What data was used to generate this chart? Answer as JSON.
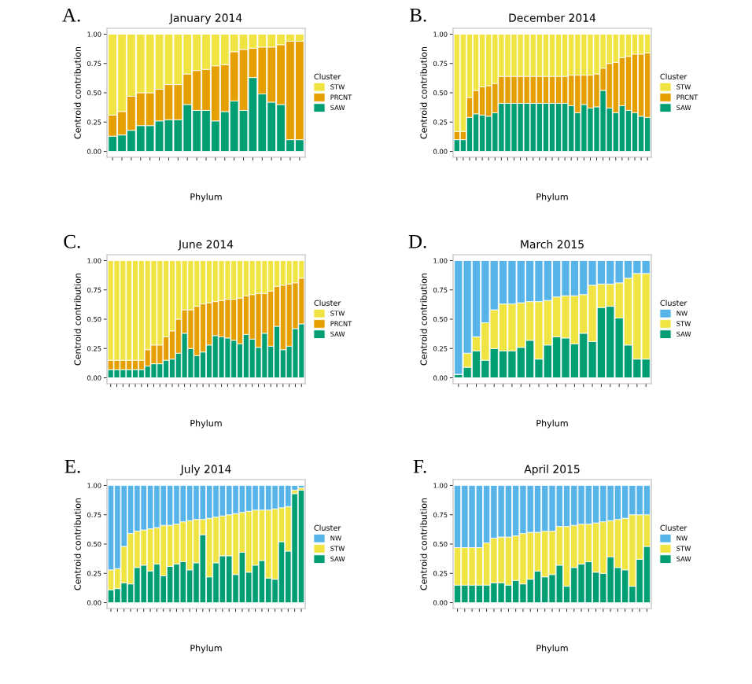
{
  "chart_data": [
    {
      "type": "bar",
      "stacked": true,
      "title": "January 2014",
      "annotations": [
        "A."
      ],
      "xlabel": "Phylum",
      "ylabel": "Centroid contribution",
      "legend_title": "Cluster",
      "legend": "right",
      "ylim": [
        -0.05,
        1.05
      ],
      "yticks": [
        {
          "value": 0,
          "label": "0.00"
        },
        {
          "value": 0.25,
          "label": "0.25"
        },
        {
          "value": 0.5,
          "label": "0.50"
        },
        {
          "value": 0.75,
          "label": "0.75"
        },
        {
          "value": 1,
          "label": "1.00"
        }
      ],
      "categories": [
        null,
        null,
        null,
        null,
        null,
        null,
        null,
        null,
        null,
        null,
        null,
        null,
        null,
        null,
        null,
        null,
        null,
        null,
        null,
        null,
        null
      ],
      "series": [
        {
          "name": "SAW",
          "color": "#009e73",
          "values": [
            0.13,
            0.14,
            0.18,
            0.22,
            0.22,
            0.26,
            0.27,
            0.27,
            0.4,
            0.35,
            0.35,
            0.26,
            0.34,
            0.43,
            0.35,
            0.63,
            0.49,
            0.42,
            0.4,
            0.1,
            0.1
          ]
        },
        {
          "name": "PRCNT",
          "color": "#e69f00",
          "values": [
            0.18,
            0.2,
            0.29,
            0.28,
            0.28,
            0.27,
            0.3,
            0.3,
            0.26,
            0.34,
            0.35,
            0.47,
            0.4,
            0.42,
            0.52,
            0.25,
            0.4,
            0.47,
            0.51,
            0.84,
            0.84
          ]
        },
        {
          "name": "STW",
          "color": "#f0e442",
          "values": [
            0.69,
            0.66,
            0.53,
            0.5,
            0.5,
            0.47,
            0.43,
            0.43,
            0.34,
            0.31,
            0.3,
            0.27,
            0.26,
            0.15,
            0.13,
            0.12,
            0.11,
            0.11,
            0.09,
            0.06,
            0.06
          ]
        }
      ]
    },
    {
      "type": "bar",
      "stacked": true,
      "title": "December 2014",
      "annotations": [
        "B."
      ],
      "xlabel": "Phylum",
      "ylabel": "Centroid contribution",
      "legend_title": "Cluster",
      "legend": "right",
      "ylim": [
        -0.05,
        1.05
      ],
      "yticks": [
        {
          "value": 0,
          "label": "0.00"
        },
        {
          "value": 0.25,
          "label": "0.25"
        },
        {
          "value": 0.5,
          "label": "0.50"
        },
        {
          "value": 0.75,
          "label": "0.75"
        },
        {
          "value": 1,
          "label": "1.00"
        }
      ],
      "categories": [
        null,
        null,
        null,
        null,
        null,
        null,
        null,
        null,
        null,
        null,
        null,
        null,
        null,
        null,
        null,
        null,
        null,
        null,
        null,
        null,
        null,
        null,
        null,
        null,
        null,
        null,
        null,
        null,
        null,
        null,
        null
      ],
      "series": [
        {
          "name": "SAW",
          "color": "#009e73",
          "values": [
            0.1,
            0.1,
            0.29,
            0.32,
            0.31,
            0.3,
            0.33,
            0.41,
            0.41,
            0.41,
            0.41,
            0.41,
            0.41,
            0.41,
            0.41,
            0.41,
            0.41,
            0.41,
            0.39,
            0.33,
            0.4,
            0.37,
            0.38,
            0.52,
            0.37,
            0.33,
            0.39,
            0.35,
            0.33,
            0.3,
            0.29
          ]
        },
        {
          "name": "PRCNT",
          "color": "#e69f00",
          "values": [
            0.07,
            0.07,
            0.17,
            0.2,
            0.24,
            0.26,
            0.25,
            0.23,
            0.23,
            0.23,
            0.23,
            0.23,
            0.23,
            0.23,
            0.23,
            0.23,
            0.23,
            0.23,
            0.26,
            0.32,
            0.25,
            0.28,
            0.28,
            0.19,
            0.38,
            0.43,
            0.41,
            0.46,
            0.5,
            0.53,
            0.55
          ]
        },
        {
          "name": "STW",
          "color": "#f0e442",
          "values": [
            0.83,
            0.83,
            0.54,
            0.48,
            0.45,
            0.44,
            0.42,
            0.36,
            0.36,
            0.36,
            0.36,
            0.36,
            0.36,
            0.36,
            0.36,
            0.36,
            0.36,
            0.36,
            0.35,
            0.35,
            0.35,
            0.35,
            0.34,
            0.29,
            0.25,
            0.24,
            0.2,
            0.19,
            0.17,
            0.17,
            0.16
          ]
        }
      ]
    },
    {
      "type": "bar",
      "stacked": true,
      "title": "June 2014",
      "annotations": [
        "C."
      ],
      "xlabel": "Phylum",
      "ylabel": "Centroid contribution",
      "legend_title": "Cluster",
      "legend": "right",
      "ylim": [
        -0.05,
        1.05
      ],
      "yticks": [
        {
          "value": 0,
          "label": "0.00"
        },
        {
          "value": 0.25,
          "label": "0.25"
        },
        {
          "value": 0.5,
          "label": "0.50"
        },
        {
          "value": 0.75,
          "label": "0.75"
        },
        {
          "value": 1,
          "label": "1.00"
        }
      ],
      "categories": [
        null,
        null,
        null,
        null,
        null,
        null,
        null,
        null,
        null,
        null,
        null,
        null,
        null,
        null,
        null,
        null,
        null,
        null,
        null,
        null,
        null,
        null,
        null,
        null,
        null,
        null,
        null,
        null,
        null,
        null,
        null,
        null
      ],
      "series": [
        {
          "name": "SAW",
          "color": "#009e73",
          "values": [
            0.07,
            0.07,
            0.07,
            0.07,
            0.07,
            0.07,
            0.1,
            0.12,
            0.12,
            0.15,
            0.16,
            0.21,
            0.38,
            0.25,
            0.19,
            0.22,
            0.28,
            0.36,
            0.35,
            0.34,
            0.32,
            0.29,
            0.37,
            0.33,
            0.26,
            0.38,
            0.27,
            0.44,
            0.24,
            0.27,
            0.42,
            0.46
          ]
        },
        {
          "name": "PRCNT",
          "color": "#e69f00",
          "values": [
            0.08,
            0.08,
            0.08,
            0.08,
            0.08,
            0.08,
            0.14,
            0.16,
            0.16,
            0.2,
            0.24,
            0.29,
            0.2,
            0.33,
            0.42,
            0.41,
            0.36,
            0.29,
            0.31,
            0.33,
            0.35,
            0.39,
            0.33,
            0.38,
            0.46,
            0.34,
            0.47,
            0.34,
            0.55,
            0.53,
            0.39,
            0.39
          ]
        },
        {
          "name": "STW",
          "color": "#f0e442",
          "values": [
            0.85,
            0.85,
            0.85,
            0.85,
            0.85,
            0.85,
            0.76,
            0.72,
            0.72,
            0.65,
            0.6,
            0.5,
            0.42,
            0.42,
            0.39,
            0.37,
            0.36,
            0.35,
            0.34,
            0.33,
            0.33,
            0.32,
            0.3,
            0.29,
            0.28,
            0.28,
            0.26,
            0.22,
            0.21,
            0.2,
            0.19,
            0.15
          ]
        }
      ]
    },
    {
      "type": "bar",
      "stacked": true,
      "title": "March 2015",
      "annotations": [
        "D."
      ],
      "xlabel": "Phylum",
      "ylabel": "Centroid contribution",
      "legend_title": "Cluster",
      "legend": "right",
      "ylim": [
        -0.05,
        1.05
      ],
      "yticks": [
        {
          "value": 0,
          "label": "0.00"
        },
        {
          "value": 0.25,
          "label": "0.25"
        },
        {
          "value": 0.5,
          "label": "0.50"
        },
        {
          "value": 0.75,
          "label": "0.75"
        },
        {
          "value": 1,
          "label": "1.00"
        }
      ],
      "categories": [
        null,
        null,
        null,
        null,
        null,
        null,
        null,
        null,
        null,
        null,
        null,
        null,
        null,
        null,
        null,
        null,
        null,
        null,
        null,
        null,
        null,
        null
      ],
      "series": [
        {
          "name": "SAW",
          "color": "#009e73",
          "values": [
            0.03,
            0.09,
            0.23,
            0.15,
            0.25,
            0.23,
            0.23,
            0.26,
            0.32,
            0.16,
            0.28,
            0.35,
            0.34,
            0.29,
            0.38,
            0.31,
            0.6,
            0.61,
            0.51,
            0.28,
            0.16,
            0.16
          ]
        },
        {
          "name": "STW",
          "color": "#f0e442",
          "values": [
            0,
            0.12,
            0.12,
            0.32,
            0.33,
            0.4,
            0.4,
            0.38,
            0.33,
            0.49,
            0.38,
            0.34,
            0.36,
            0.41,
            0.33,
            0.48,
            0.2,
            0.19,
            0.3,
            0.57,
            0.73,
            0.73
          ]
        },
        {
          "name": "NW",
          "color": "#56b4e9",
          "values": [
            0.97,
            0.79,
            0.65,
            0.53,
            0.42,
            0.37,
            0.37,
            0.36,
            0.35,
            0.35,
            0.34,
            0.31,
            0.3,
            0.3,
            0.29,
            0.21,
            0.2,
            0.2,
            0.19,
            0.15,
            0.11,
            0.11
          ]
        }
      ]
    },
    {
      "type": "bar",
      "stacked": true,
      "title": "July 2014",
      "annotations": [
        "E."
      ],
      "xlabel": "Phylum",
      "ylabel": "Centroid contribution",
      "legend_title": "Cluster",
      "legend": "right",
      "ylim": [
        -0.05,
        1.05
      ],
      "yticks": [
        {
          "value": 0,
          "label": "0.00"
        },
        {
          "value": 0.25,
          "label": "0.25"
        },
        {
          "value": 0.5,
          "label": "0.50"
        },
        {
          "value": 0.75,
          "label": "0.75"
        },
        {
          "value": 1,
          "label": "1.00"
        }
      ],
      "categories": [
        null,
        null,
        null,
        null,
        null,
        null,
        null,
        null,
        null,
        null,
        null,
        null,
        null,
        null,
        null,
        null,
        null,
        null,
        null,
        null,
        null,
        null,
        null,
        null,
        null,
        null,
        null,
        null,
        null,
        null
      ],
      "series": [
        {
          "name": "SAW",
          "color": "#009e73",
          "values": [
            0.11,
            0.12,
            0.17,
            0.16,
            0.3,
            0.32,
            0.27,
            0.33,
            0.23,
            0.31,
            0.33,
            0.35,
            0.28,
            0.34,
            0.58,
            0.22,
            0.34,
            0.4,
            0.4,
            0.24,
            0.43,
            0.26,
            0.32,
            0.36,
            0.21,
            0.2,
            0.52,
            0.44,
            0.93,
            0.96
          ]
        },
        {
          "name": "STW",
          "color": "#f0e442",
          "values": [
            0.17,
            0.17,
            0.31,
            0.43,
            0.31,
            0.3,
            0.36,
            0.31,
            0.43,
            0.35,
            0.34,
            0.34,
            0.42,
            0.37,
            0.13,
            0.5,
            0.39,
            0.34,
            0.35,
            0.52,
            0.34,
            0.52,
            0.47,
            0.43,
            0.58,
            0.6,
            0.29,
            0.38,
            0.03,
            0.02
          ]
        },
        {
          "name": "NW",
          "color": "#56b4e9",
          "values": [
            0.72,
            0.71,
            0.52,
            0.41,
            0.39,
            0.38,
            0.37,
            0.36,
            0.34,
            0.34,
            0.33,
            0.31,
            0.3,
            0.29,
            0.29,
            0.28,
            0.27,
            0.26,
            0.25,
            0.24,
            0.23,
            0.22,
            0.21,
            0.21,
            0.21,
            0.2,
            0.19,
            0.18,
            0.04,
            0.02
          ]
        }
      ]
    },
    {
      "type": "bar",
      "stacked": true,
      "title": "April 2015",
      "annotations": [
        "F."
      ],
      "xlabel": "Phylum",
      "ylabel": "Centroid contribution",
      "legend_title": "Cluster",
      "legend": "right",
      "ylim": [
        -0.05,
        1.05
      ],
      "yticks": [
        {
          "value": 0,
          "label": "0.00"
        },
        {
          "value": 0.25,
          "label": "0.25"
        },
        {
          "value": 0.5,
          "label": "0.50"
        },
        {
          "value": 0.75,
          "label": "0.75"
        },
        {
          "value": 1,
          "label": "1.00"
        }
      ],
      "categories": [
        null,
        null,
        null,
        null,
        null,
        null,
        null,
        null,
        null,
        null,
        null,
        null,
        null,
        null,
        null,
        null,
        null,
        null,
        null,
        null,
        null,
        null,
        null,
        null,
        null,
        null,
        null
      ],
      "series": [
        {
          "name": "SAW",
          "color": "#009e73",
          "values": [
            0.15,
            0.15,
            0.15,
            0.15,
            0.15,
            0.17,
            0.17,
            0.15,
            0.19,
            0.16,
            0.2,
            0.27,
            0.22,
            0.24,
            0.32,
            0.14,
            0.3,
            0.33,
            0.35,
            0.26,
            0.25,
            0.39,
            0.3,
            0.28,
            0.14,
            0.37,
            0.48
          ]
        },
        {
          "name": "STW",
          "color": "#f0e442",
          "values": [
            0.32,
            0.32,
            0.32,
            0.32,
            0.36,
            0.38,
            0.39,
            0.41,
            0.38,
            0.43,
            0.4,
            0.33,
            0.39,
            0.37,
            0.33,
            0.51,
            0.36,
            0.34,
            0.32,
            0.42,
            0.44,
            0.31,
            0.41,
            0.44,
            0.61,
            0.38,
            0.27
          ]
        },
        {
          "name": "NW",
          "color": "#56b4e9",
          "values": [
            0.53,
            0.53,
            0.53,
            0.53,
            0.49,
            0.45,
            0.44,
            0.44,
            0.43,
            0.41,
            0.4,
            0.4,
            0.39,
            0.39,
            0.35,
            0.35,
            0.34,
            0.33,
            0.33,
            0.32,
            0.31,
            0.3,
            0.29,
            0.28,
            0.25,
            0.25,
            0.25
          ]
        }
      ]
    }
  ]
}
